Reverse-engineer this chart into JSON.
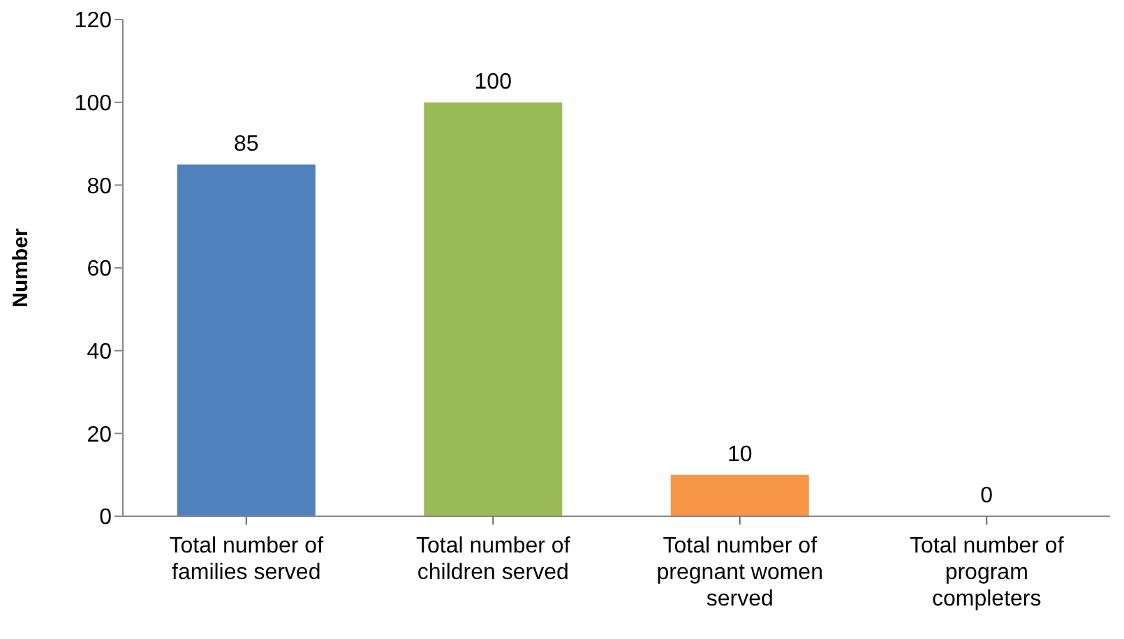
{
  "chart_data": {
    "type": "bar",
    "ylabel": "Number",
    "categories": [
      "Total number of families served",
      "Total number of children served",
      "Total number of pregnant women served",
      "Total number of program completers"
    ],
    "values": [
      85,
      100,
      10,
      0
    ],
    "colors": [
      "#4f81bd",
      "#9bbb59",
      "#f79646",
      "#8064a2"
    ],
    "ylim": [
      0,
      120
    ],
    "yticks": [
      0,
      20,
      40,
      60,
      80,
      100,
      120
    ],
    "grid": false,
    "data_labels": true
  }
}
